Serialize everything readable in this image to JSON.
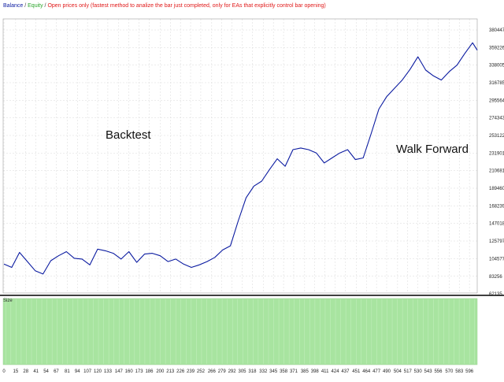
{
  "legend": {
    "balance": "Balance",
    "sep1": " / ",
    "equity": "Equity",
    "sep2": " / ",
    "note": "Open prices only (fastest method to analize the bar just completed, only for EAs that explicitly control bar opening)"
  },
  "colors": {
    "balance": "#0a1aa0",
    "equity": "#2aa52a",
    "note": "#e01818",
    "size_fill": "#a8e4a0",
    "grid": "#d8d8d8"
  },
  "chart_data": {
    "type": "line",
    "series": [
      {
        "name": "Balance",
        "x": [
          0,
          10,
          20,
          30,
          40,
          50,
          60,
          70,
          80,
          90,
          100,
          110,
          120,
          130,
          140,
          150,
          160,
          170,
          180,
          190,
          200,
          210,
          220,
          230,
          240,
          250,
          260,
          270,
          280,
          290,
          300,
          310,
          320,
          330,
          340,
          350,
          360,
          370,
          380,
          390,
          400,
          410,
          420,
          430,
          440,
          450,
          460,
          470,
          480,
          490,
          500,
          510,
          520,
          530,
          540,
          550,
          560,
          570,
          580,
          590,
          600,
          606
        ],
        "y": [
          98000,
          94000,
          112000,
          101000,
          90000,
          86000,
          102000,
          108000,
          113000,
          105000,
          104000,
          97000,
          116000,
          114000,
          111000,
          104000,
          113000,
          100000,
          110000,
          111000,
          108000,
          101000,
          104000,
          98000,
          94000,
          97000,
          101000,
          106000,
          115000,
          120000,
          150000,
          178000,
          192000,
          198000,
          212000,
          225000,
          216000,
          236000,
          238000,
          236000,
          232000,
          220000,
          226000,
          232000,
          236000,
          224000,
          226000,
          255000,
          285000,
          300000,
          310000,
          320000,
          333000,
          348000,
          332000,
          325000,
          320000,
          330000,
          338000,
          352000,
          365000,
          356000
        ]
      }
    ],
    "yticks": [
      62135,
      83256,
      104577,
      125797,
      147018,
      168239,
      189460,
      210681,
      231901,
      253122,
      274343,
      295564,
      316785,
      338005,
      359226,
      380447
    ],
    "xticks": [
      0,
      15,
      28,
      41,
      54,
      67,
      81,
      94,
      107,
      120,
      133,
      147,
      160,
      173,
      186,
      200,
      213,
      226,
      239,
      252,
      266,
      279,
      292,
      305,
      318,
      332,
      345,
      358,
      371,
      385,
      398,
      411,
      424,
      437,
      451,
      464,
      477,
      490,
      504,
      517,
      530,
      543,
      556,
      570,
      583,
      596
    ],
    "ylim": [
      62135,
      380447
    ],
    "xlim": [
      0,
      612
    ],
    "grid": true,
    "annotations": [
      "Backtest",
      "Walk Forward"
    ]
  },
  "size_panel": {
    "label": "Size"
  }
}
